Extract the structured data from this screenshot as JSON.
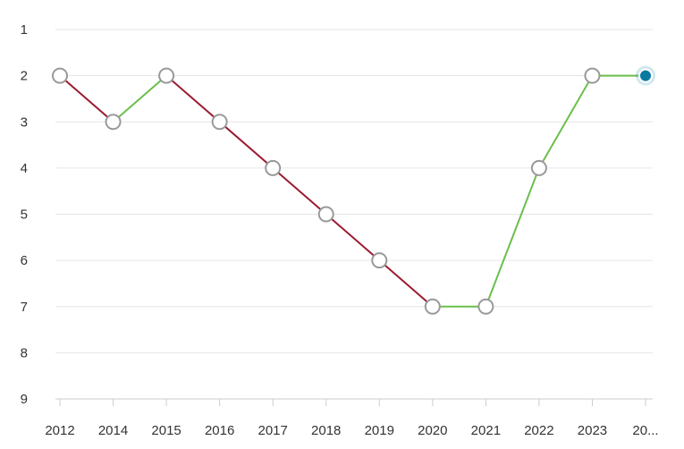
{
  "chart_data": {
    "type": "line",
    "categories": [
      "2012",
      "2014",
      "2015",
      "2016",
      "2017",
      "2018",
      "2019",
      "2020",
      "2021",
      "2022",
      "2023",
      "20..."
    ],
    "series": [
      {
        "values": [
          2,
          3,
          2,
          3,
          4,
          5,
          6,
          7,
          7,
          4,
          2,
          2
        ]
      }
    ],
    "ylim": [
      1,
      9
    ],
    "y_axis_inverted": true,
    "y_ticks": [
      1,
      2,
      3,
      4,
      5,
      6,
      7,
      8,
      9
    ],
    "grid": true,
    "colors": {
      "worse": "#9b1b30",
      "better": "#6abf4b",
      "marker_fill": "#ffffff",
      "marker_stroke": "#999999",
      "latest_marker": "#0a7aa1",
      "grid": "#e6e6e6",
      "axis": "#cccccc"
    }
  }
}
